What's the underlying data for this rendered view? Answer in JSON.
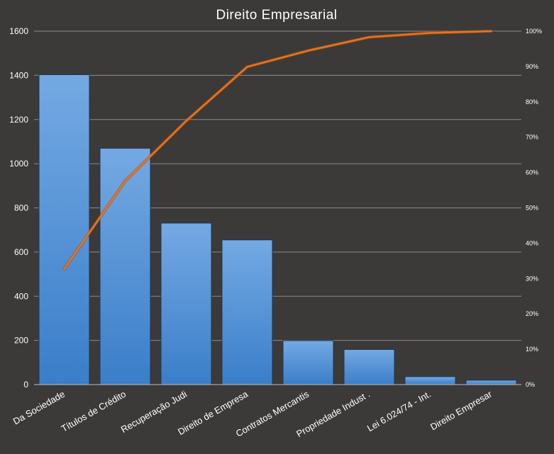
{
  "chart_data": {
    "type": "bar",
    "title": "Direito Empresarial",
    "xlabel": "",
    "ylabel": "",
    "categories": [
      "Da Sociedade",
      "Títulos de Crédito",
      "Recuperação Judi",
      "Direito de Empresa",
      "Contratos Mercantis",
      "Propriedade  Indust .",
      "Lei 6.024/74 - Int.",
      "Direito Empresar"
    ],
    "values": [
      1403,
      1070,
      731,
      655,
      199,
      159,
      36,
      20
    ],
    "ylim": [
      0,
      1600
    ],
    "yticks": [
      "0",
      "200",
      "400",
      "600",
      "800",
      "1000",
      "1200",
      "1400",
      "1600"
    ],
    "ytick_values": [
      0,
      200,
      400,
      600,
      800,
      1000,
      1200,
      1400,
      1600
    ],
    "secondary_axis": {
      "ylim": [
        0,
        1
      ],
      "ticks": [
        "0%",
        "10%",
        "20%",
        "30%",
        "40%",
        "50%",
        "60%",
        "70%",
        "80%",
        "90%",
        "100%"
      ],
      "tick_values": [
        0,
        0.1,
        0.2,
        0.3,
        0.4,
        0.5,
        0.6,
        0.7,
        0.8,
        0.9,
        1.0
      ]
    },
    "cumulative_line": {
      "type": "line",
      "axis": "secondary",
      "values": [
        0.327,
        0.576,
        0.746,
        0.899,
        0.945,
        0.983,
        0.995,
        1.0
      ]
    },
    "grid": "horizontal",
    "legend": "none",
    "colors": {
      "background": "#3b3a39",
      "bar_top": "#74a9e3",
      "bar_bottom": "#3a7ec9",
      "bar_stroke": "#1f3550",
      "line": "#e8731f",
      "grid": "#8a8a8a",
      "text": "#ffffff"
    }
  }
}
